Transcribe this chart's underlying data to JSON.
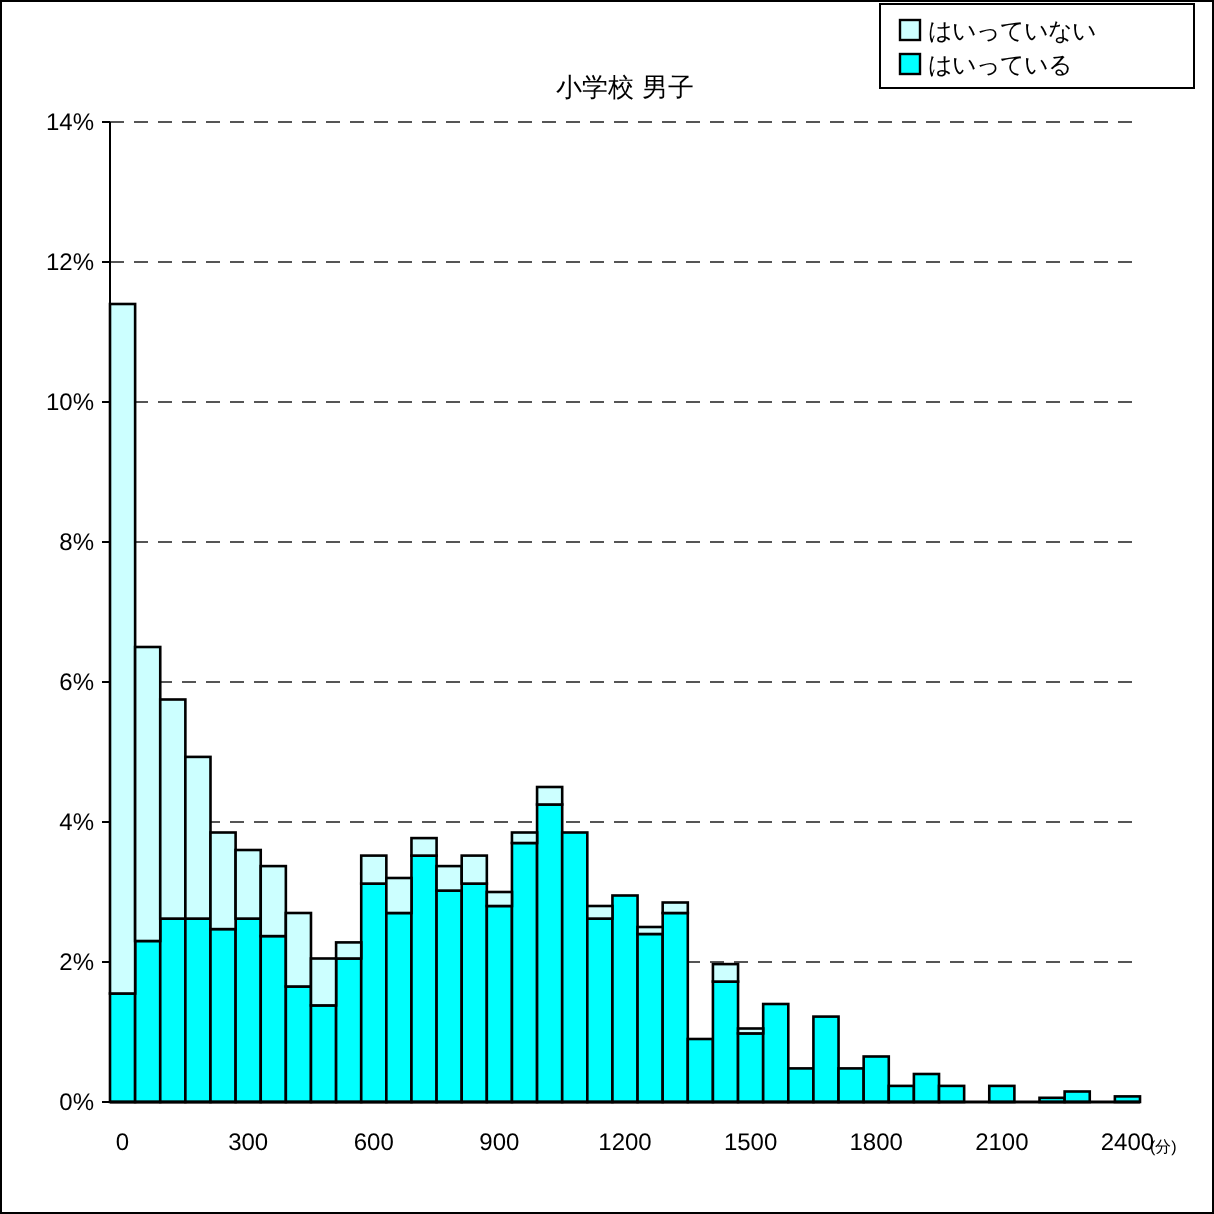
{
  "chart_data": {
    "type": "bar",
    "stacked": true,
    "title": "小学校  男子",
    "xlabel": "(分)",
    "x": [
      0,
      60,
      120,
      180,
      240,
      300,
      360,
      420,
      480,
      540,
      600,
      660,
      720,
      780,
      840,
      900,
      960,
      1020,
      1080,
      1140,
      1200,
      1260,
      1320,
      1380,
      1440,
      1500,
      1560,
      1620,
      1680,
      1740,
      1800,
      1860,
      1920,
      1980,
      2040,
      2100,
      2160,
      2220,
      2280,
      2340,
      2400
    ],
    "series": [
      {
        "name": "はいっている",
        "color": "#00ffff",
        "values": [
          1.55,
          2.3,
          2.62,
          2.62,
          2.47,
          2.62,
          2.37,
          1.65,
          1.38,
          2.05,
          3.12,
          2.7,
          3.52,
          3.02,
          3.12,
          2.8,
          3.7,
          4.25,
          3.85,
          2.62,
          2.95,
          2.4,
          2.7,
          0.9,
          1.72,
          0.98,
          1.4,
          0.48,
          1.22,
          0.48,
          0.65,
          0.23,
          0.4,
          0.23,
          0,
          0.23,
          0,
          0.06,
          0.15,
          0,
          0.08
        ]
      },
      {
        "name": "はいっていない",
        "color": "#ccffff",
        "values": [
          9.85,
          4.2,
          3.13,
          2.31,
          1.38,
          0.98,
          1.0,
          1.05,
          0.67,
          0.23,
          0.4,
          0.5,
          0.25,
          0.35,
          0.4,
          0.2,
          0.15,
          0.25,
          0,
          0.18,
          0,
          0.1,
          0.15,
          0,
          0.25,
          0.07,
          0,
          0,
          0,
          0,
          0,
          0,
          0,
          0,
          0,
          0,
          0,
          0,
          0,
          0,
          0
        ]
      }
    ],
    "xlim": [
      -30,
      2430
    ],
    "xticks": [
      0,
      300,
      600,
      900,
      1200,
      1500,
      1800,
      2100,
      2400
    ],
    "ylim": [
      0,
      14
    ],
    "yticks": [
      {
        "value": 0,
        "label": "0%"
      },
      {
        "value": 2,
        "label": "2%"
      },
      {
        "value": 4,
        "label": "4%"
      },
      {
        "value": 6,
        "label": "6%"
      },
      {
        "value": 8,
        "label": "8%"
      },
      {
        "value": 10,
        "label": "10%"
      },
      {
        "value": 12,
        "label": "12%"
      },
      {
        "value": 14,
        "label": "14%"
      }
    ],
    "grid": "y",
    "legend": "top right"
  }
}
